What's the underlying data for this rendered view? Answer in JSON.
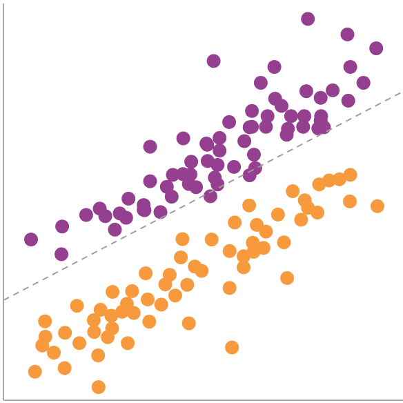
{
  "chart_data": {
    "type": "scatter",
    "title": "",
    "xlabel": "",
    "ylabel": "",
    "xlim": [
      0,
      100
    ],
    "ylim": [
      0,
      100
    ],
    "grid": false,
    "legend": "none",
    "colors": {
      "purple": "#943F8F",
      "orange": "#F79A3E",
      "divider": "#9E9E9E",
      "axis": "#A8A8A8"
    },
    "divider": {
      "x": [
        0,
        100
      ],
      "y": [
        25.2,
        77.8
      ],
      "style": "dashed"
    },
    "series": [
      {
        "color": "#943F8F",
        "points": [
          [
            76.2,
            96.1
          ],
          [
            86.1,
            92.2
          ],
          [
            93.3,
            88.7
          ],
          [
            52.6,
            85.5
          ],
          [
            67.8,
            84.0
          ],
          [
            86.8,
            84.0
          ],
          [
            64.4,
            80.0
          ],
          [
            90.1,
            80.0
          ],
          [
            75.8,
            77.9
          ],
          [
            82.4,
            78.1
          ],
          [
            68.0,
            76.0
          ],
          [
            79.4,
            76.2
          ],
          [
            86.3,
            75.5
          ],
          [
            69.6,
            74.2
          ],
          [
            62.2,
            72.9
          ],
          [
            66.1,
            71.6
          ],
          [
            72.0,
            71.6
          ],
          [
            75.3,
            71.6
          ],
          [
            79.5,
            71.6
          ],
          [
            56.5,
            70.1
          ],
          [
            79.4,
            70.5
          ],
          [
            61.6,
            68.8
          ],
          [
            62.2,
            68.9
          ],
          [
            65.7,
            68.9
          ],
          [
            71.2,
            68.4
          ],
          [
            75.0,
            68.9
          ],
          [
            78.8,
            68.5
          ],
          [
            80.2,
            68.8
          ],
          [
            70.9,
            66.9
          ],
          [
            45.0,
            66.0
          ],
          [
            54.1,
            66.1
          ],
          [
            60.3,
            65.3
          ],
          [
            51.0,
            64.4
          ],
          [
            36.7,
            63.9
          ],
          [
            50.8,
            64.7
          ],
          [
            54.1,
            62.9
          ],
          [
            62.7,
            61.9
          ],
          [
            51.1,
            60.3
          ],
          [
            47.0,
            60.1
          ],
          [
            53.6,
            59.3
          ],
          [
            57.7,
            58.8
          ],
          [
            63.0,
            58.5
          ],
          [
            61.6,
            56.7
          ],
          [
            42.4,
            56.8
          ],
          [
            44.9,
            57.0
          ],
          [
            46.8,
            56.9
          ],
          [
            52.9,
            56.1
          ],
          [
            36.7,
            55.2
          ],
          [
            53.6,
            54.4
          ],
          [
            46.4,
            54.5
          ],
          [
            40.9,
            53.8
          ],
          [
            48.2,
            53.7
          ],
          [
            42.1,
            51.3
          ],
          [
            51.8,
            51.4
          ],
          [
            31.3,
            50.8
          ],
          [
            35.1,
            49.2
          ],
          [
            24.1,
            48.3
          ],
          [
            35.1,
            48.0
          ],
          [
            29.1,
            47.1
          ],
          [
            35.3,
            47.9
          ],
          [
            39.3,
            47.4
          ],
          [
            20.7,
            46.7
          ],
          [
            25.5,
            46.4
          ],
          [
            30.7,
            46.0
          ],
          [
            14.7,
            43.8
          ],
          [
            27.9,
            43.0
          ],
          [
            6.9,
            40.5
          ],
          [
            14.5,
            36.8
          ]
        ]
      },
      {
        "color": "#F79A3E",
        "points": [
          [
            86.8,
            56.8
          ],
          [
            84.1,
            55.7
          ],
          [
            81.5,
            55.4
          ],
          [
            79.0,
            54.4
          ],
          [
            72.4,
            52.7
          ],
          [
            86.7,
            50.1
          ],
          [
            75.4,
            50.4
          ],
          [
            93.6,
            48.9
          ],
          [
            76.2,
            48.5
          ],
          [
            61.5,
            49.1
          ],
          [
            78.6,
            47.3
          ],
          [
            68.7,
            46.8
          ],
          [
            74.5,
            45.5
          ],
          [
            57.9,
            44.8
          ],
          [
            63.4,
            44.2
          ],
          [
            65.7,
            42.5
          ],
          [
            44.8,
            40.6
          ],
          [
            52.1,
            40.5
          ],
          [
            62.4,
            39.7
          ],
          [
            70.2,
            39.8
          ],
          [
            65.1,
            38.4
          ],
          [
            62.6,
            37.4
          ],
          [
            56.6,
            37.6
          ],
          [
            60.1,
            36.3
          ],
          [
            44.4,
            36.0
          ],
          [
            60.1,
            33.5
          ],
          [
            47.9,
            33.7
          ],
          [
            35.6,
            32.0
          ],
          [
            49.6,
            32.6
          ],
          [
            41.6,
            31.6
          ],
          [
            71.0,
            30.8
          ],
          [
            40.5,
            29.2
          ],
          [
            46.0,
            29.1
          ],
          [
            56.6,
            28.3
          ],
          [
            27.3,
            27.3
          ],
          [
            32.2,
            27.5
          ],
          [
            43.0,
            26.4
          ],
          [
            36.1,
            25.4
          ],
          [
            30.9,
            24.3
          ],
          [
            39.5,
            24.1
          ],
          [
            18.4,
            23.8
          ],
          [
            24.3,
            22.8
          ],
          [
            29.7,
            22.3
          ],
          [
            32.6,
            22.0
          ],
          [
            27.0,
            21.3
          ],
          [
            10.4,
            19.9
          ],
          [
            22.6,
            20.2
          ],
          [
            36.5,
            19.8
          ],
          [
            46.4,
            19.4
          ],
          [
            27.2,
            18.1
          ],
          [
            22.7,
            17.2
          ],
          [
            15.4,
            17.0
          ],
          [
            10.5,
            16.0
          ],
          [
            26.1,
            15.9
          ],
          [
            19.0,
            14.4
          ],
          [
            31.1,
            14.4
          ],
          [
            9.7,
            13.8
          ],
          [
            57.2,
            13.3
          ],
          [
            12.6,
            12.0
          ],
          [
            23.7,
            11.3
          ],
          [
            15.3,
            8.1
          ],
          [
            7.9,
            7.2
          ],
          [
            23.8,
            3.3
          ]
        ]
      }
    ]
  }
}
